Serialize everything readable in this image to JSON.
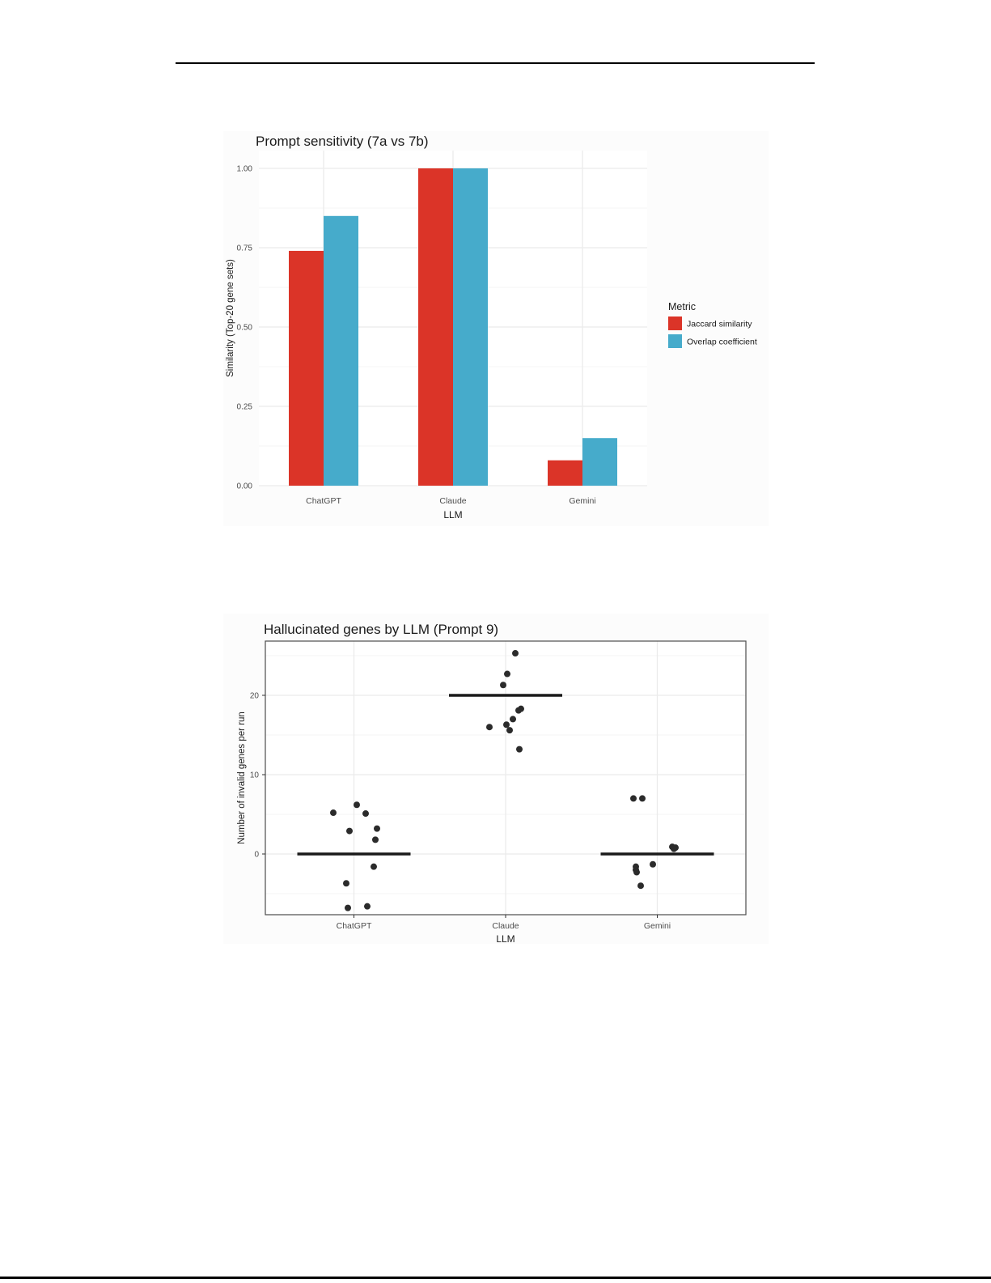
{
  "chart_data": [
    {
      "type": "bar",
      "title": "Prompt sensitivity (7a vs 7b)",
      "xlabel": "LLM",
      "ylabel": "Similarity (Top-20 gene sets)",
      "categories": [
        "ChatGPT",
        "Claude",
        "Gemini"
      ],
      "series": [
        {
          "name": "Jaccard similarity",
          "color": "#DB3428",
          "values": [
            0.74,
            1.0,
            0.08
          ]
        },
        {
          "name": "Overlap coefficient",
          "color": "#46ABCB",
          "values": [
            0.85,
            1.0,
            0.15
          ]
        }
      ],
      "ylim": [
        0,
        1.056
      ],
      "yticks": [
        0,
        0.25,
        0.5,
        0.75,
        1.0
      ],
      "ytick_labels": [
        "0.00",
        "0.25",
        "0.50",
        "0.75",
        "1.00"
      ],
      "yticks_minor": [
        0.125,
        0.375,
        0.625,
        0.875
      ],
      "grid": "on",
      "legend_title": "Metric",
      "legend_position": "right"
    },
    {
      "type": "scatter",
      "title": "Hallucinated genes by LLM (Prompt 9)",
      "xlabel": "LLM",
      "ylabel": "Number of invalid genes per run",
      "categories": [
        "ChatGPT",
        "Claude",
        "Gemini"
      ],
      "ylim": [
        -7.5,
        26.8
      ],
      "yticks": [
        0,
        10,
        20
      ],
      "ytick_labels": [
        "0",
        "10",
        "20"
      ],
      "yticks_minor": [
        -5,
        5,
        15,
        25
      ],
      "grid": "on",
      "point_color": "#2b2b2b",
      "mean_line_color": "#1a1a1a",
      "groups": [
        {
          "category": "ChatGPT",
          "mean_line": 0,
          "values": [
            6.2,
            5.2,
            5.1,
            3.2,
            2.9,
            1.8,
            -1.6,
            -3.7,
            -6.6,
            -6.8
          ],
          "points": [
            [
              3.5,
              6.2
            ],
            [
              -25.5,
              5.2
            ],
            [
              14.5,
              5.1
            ],
            [
              28.5,
              3.2
            ],
            [
              -5.5,
              2.9
            ],
            [
              26.5,
              1.8
            ],
            [
              24.5,
              -1.6
            ],
            [
              -9.5,
              -3.7
            ],
            [
              16.5,
              -6.6
            ],
            [
              -7.5,
              -6.8
            ]
          ]
        },
        {
          "category": "Claude",
          "mean_line": 20,
          "values": [
            25.3,
            22.7,
            21.3,
            18.3,
            18.1,
            17.0,
            16.3,
            16.0,
            15.6,
            13.2
          ],
          "points": [
            [
              12,
              25.3
            ],
            [
              2,
              22.7
            ],
            [
              -3,
              21.3
            ],
            [
              19,
              18.3
            ],
            [
              16,
              18.1
            ],
            [
              9,
              17.0
            ],
            [
              1,
              16.3
            ],
            [
              -20,
              16.0
            ],
            [
              5,
              15.6
            ],
            [
              17,
              13.2
            ]
          ]
        },
        {
          "category": "Gemini",
          "mean_line": 0,
          "values": [
            7.0,
            7.0,
            0.9,
            0.8,
            0.65,
            -1.3,
            -1.6,
            -2.0,
            -2.3,
            -4.0
          ],
          "points": [
            [
              -29.5,
              7.0
            ],
            [
              -18.5,
              7.0
            ],
            [
              18.5,
              0.9
            ],
            [
              22.5,
              0.8
            ],
            [
              20.5,
              0.65
            ],
            [
              -5.5,
              -1.3
            ],
            [
              -26.5,
              -1.6
            ],
            [
              -26.5,
              -2.0
            ],
            [
              -25.5,
              -2.3
            ],
            [
              -20.5,
              -4.0
            ]
          ]
        }
      ]
    }
  ],
  "theme": {
    "grid_major": "#EBEBEB",
    "grid_minor": "#F4F4F4",
    "tick_text": "#4d4d4d",
    "axis_text": "#1a1a1a",
    "panel_border": "#4d4d4d"
  }
}
